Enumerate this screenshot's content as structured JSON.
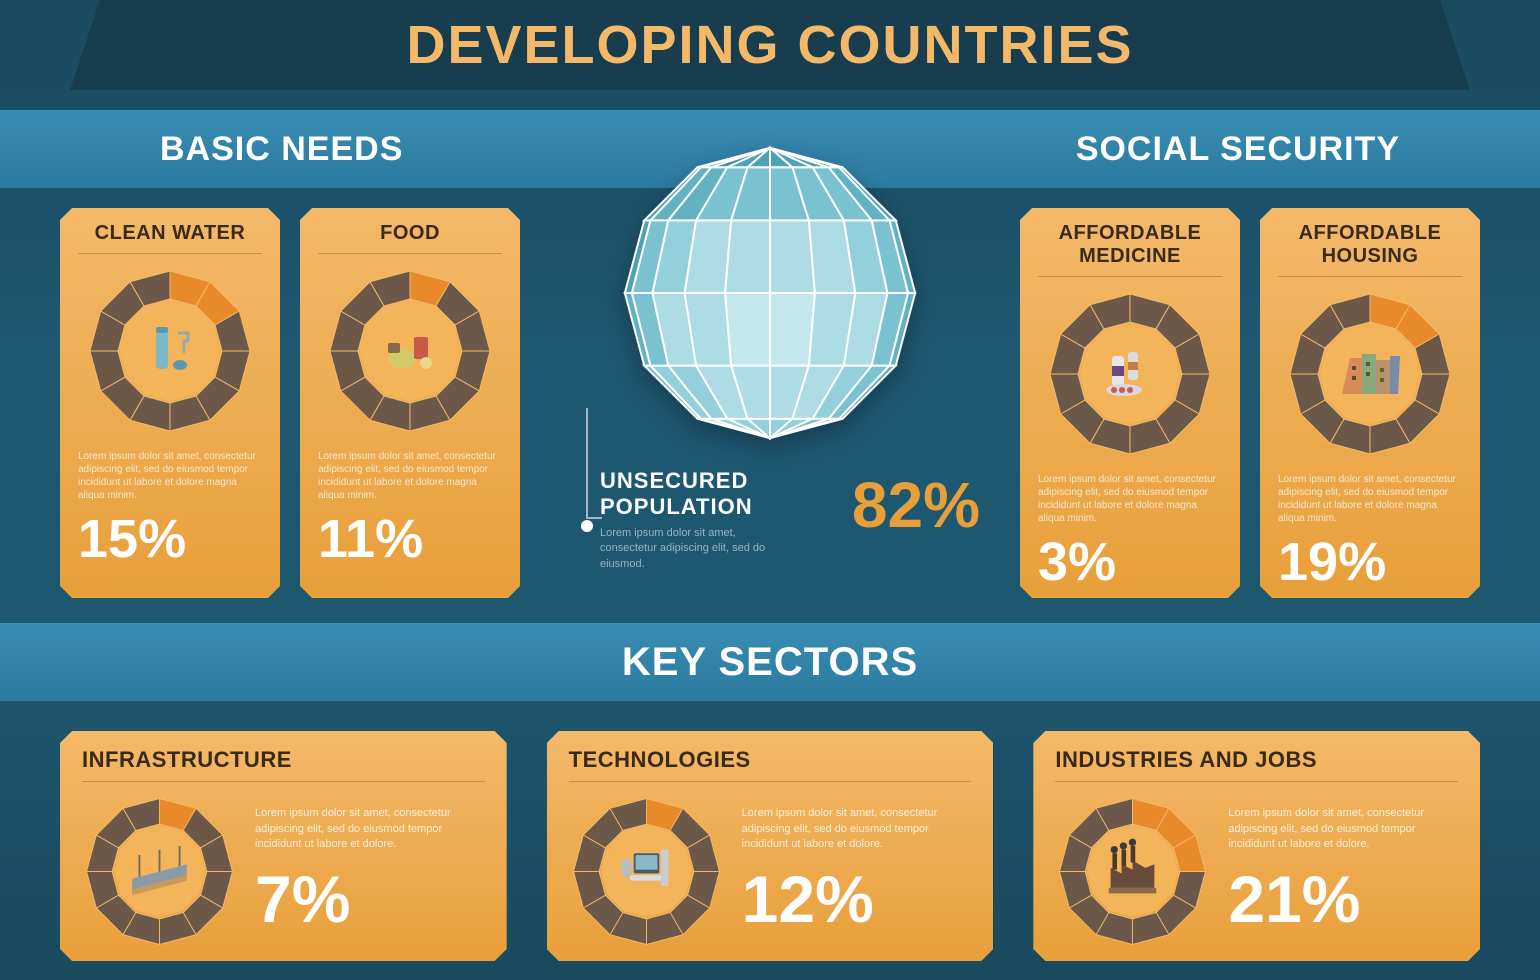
{
  "title": "DEVELOPING COUNTRIES",
  "colors": {
    "bg_top": "#1a4a5e",
    "bg_mid": "#1e5770",
    "band_dark": "#173d4e",
    "band_light_top": "#3a8db3",
    "band_light_bottom": "#2c7a9f",
    "card_top": "#f3b969",
    "card_bottom": "#e89f3a",
    "title_color": "#f3b969",
    "donut_fill": "#e88a2a",
    "donut_track": "#6b5848",
    "donut_inner": "#f3b45a",
    "pct_white": "#ffffff",
    "center_pct": "#e89f3a",
    "globe_light": "#bde0e8",
    "globe_mid": "#8fc9d6",
    "globe_dark": "#5fa8b8"
  },
  "sections": {
    "basic_needs": "BASIC NEEDS",
    "social_security": "SOCIAL SECURITY",
    "key_sectors": "KEY SECTORS"
  },
  "center": {
    "title": "UNSECURED POPULATION",
    "desc": "Lorem ipsum dolor sit amet, consectetur adipiscing elit, sed do eiusmod.",
    "pct": "82%",
    "pct_value": 82
  },
  "top_cards": [
    {
      "title": "CLEAN WATER",
      "pct": "15%",
      "pct_value": 15,
      "icon": "water",
      "desc": "Lorem ipsum dolor sit amet, consectetur adipiscing elit, sed do eiusmod tempor incididunt ut labore et dolore magna aliqua minim."
    },
    {
      "title": "FOOD",
      "pct": "11%",
      "pct_value": 11,
      "icon": "food",
      "desc": "Lorem ipsum dolor sit amet, consectetur adipiscing elit, sed do eiusmod tempor incididunt ut labore et dolore magna aliqua minim."
    },
    {
      "title": "AFFORDABLE MEDICINE",
      "pct": "3%",
      "pct_value": 3,
      "icon": "medicine",
      "desc": "Lorem ipsum dolor sit amet, consectetur adipiscing elit, sed do eiusmod tempor incididunt ut labore et dolore magna aliqua minim."
    },
    {
      "title": "AFFORDABLE HOUSING",
      "pct": "19%",
      "pct_value": 19,
      "icon": "housing",
      "desc": "Lorem ipsum dolor sit amet, consectetur adipiscing elit, sed do eiusmod tempor incididunt ut labore et dolore magna aliqua minim."
    }
  ],
  "bottom_cards": [
    {
      "title": "INFRASTRUCTURE",
      "pct": "7%",
      "pct_value": 7,
      "icon": "infra",
      "desc": "Lorem ipsum dolor sit amet, consectetur adipiscing elit, sed do eiusmod tempor incididunt ut labore et dolore."
    },
    {
      "title": "TECHNOLOGIES",
      "pct": "12%",
      "pct_value": 12,
      "icon": "tech",
      "desc": "Lorem ipsum dolor sit amet, consectetur adipiscing elit, sed do eiusmod tempor incididunt ut labore et dolore."
    },
    {
      "title": "INDUSTRIES AND JOBS",
      "pct": "21%",
      "pct_value": 21,
      "icon": "industry",
      "desc": "Lorem ipsum dolor sit amet, consectetur adipiscing elit, sed do eiusmod tempor incididunt ut labore et dolore."
    }
  ],
  "donut": {
    "segments": 12,
    "track_color": "#6b5848",
    "fill_color": "#e88a2a",
    "inner_color": "#f3b45a",
    "outer_r": 80,
    "inner_r": 52
  }
}
